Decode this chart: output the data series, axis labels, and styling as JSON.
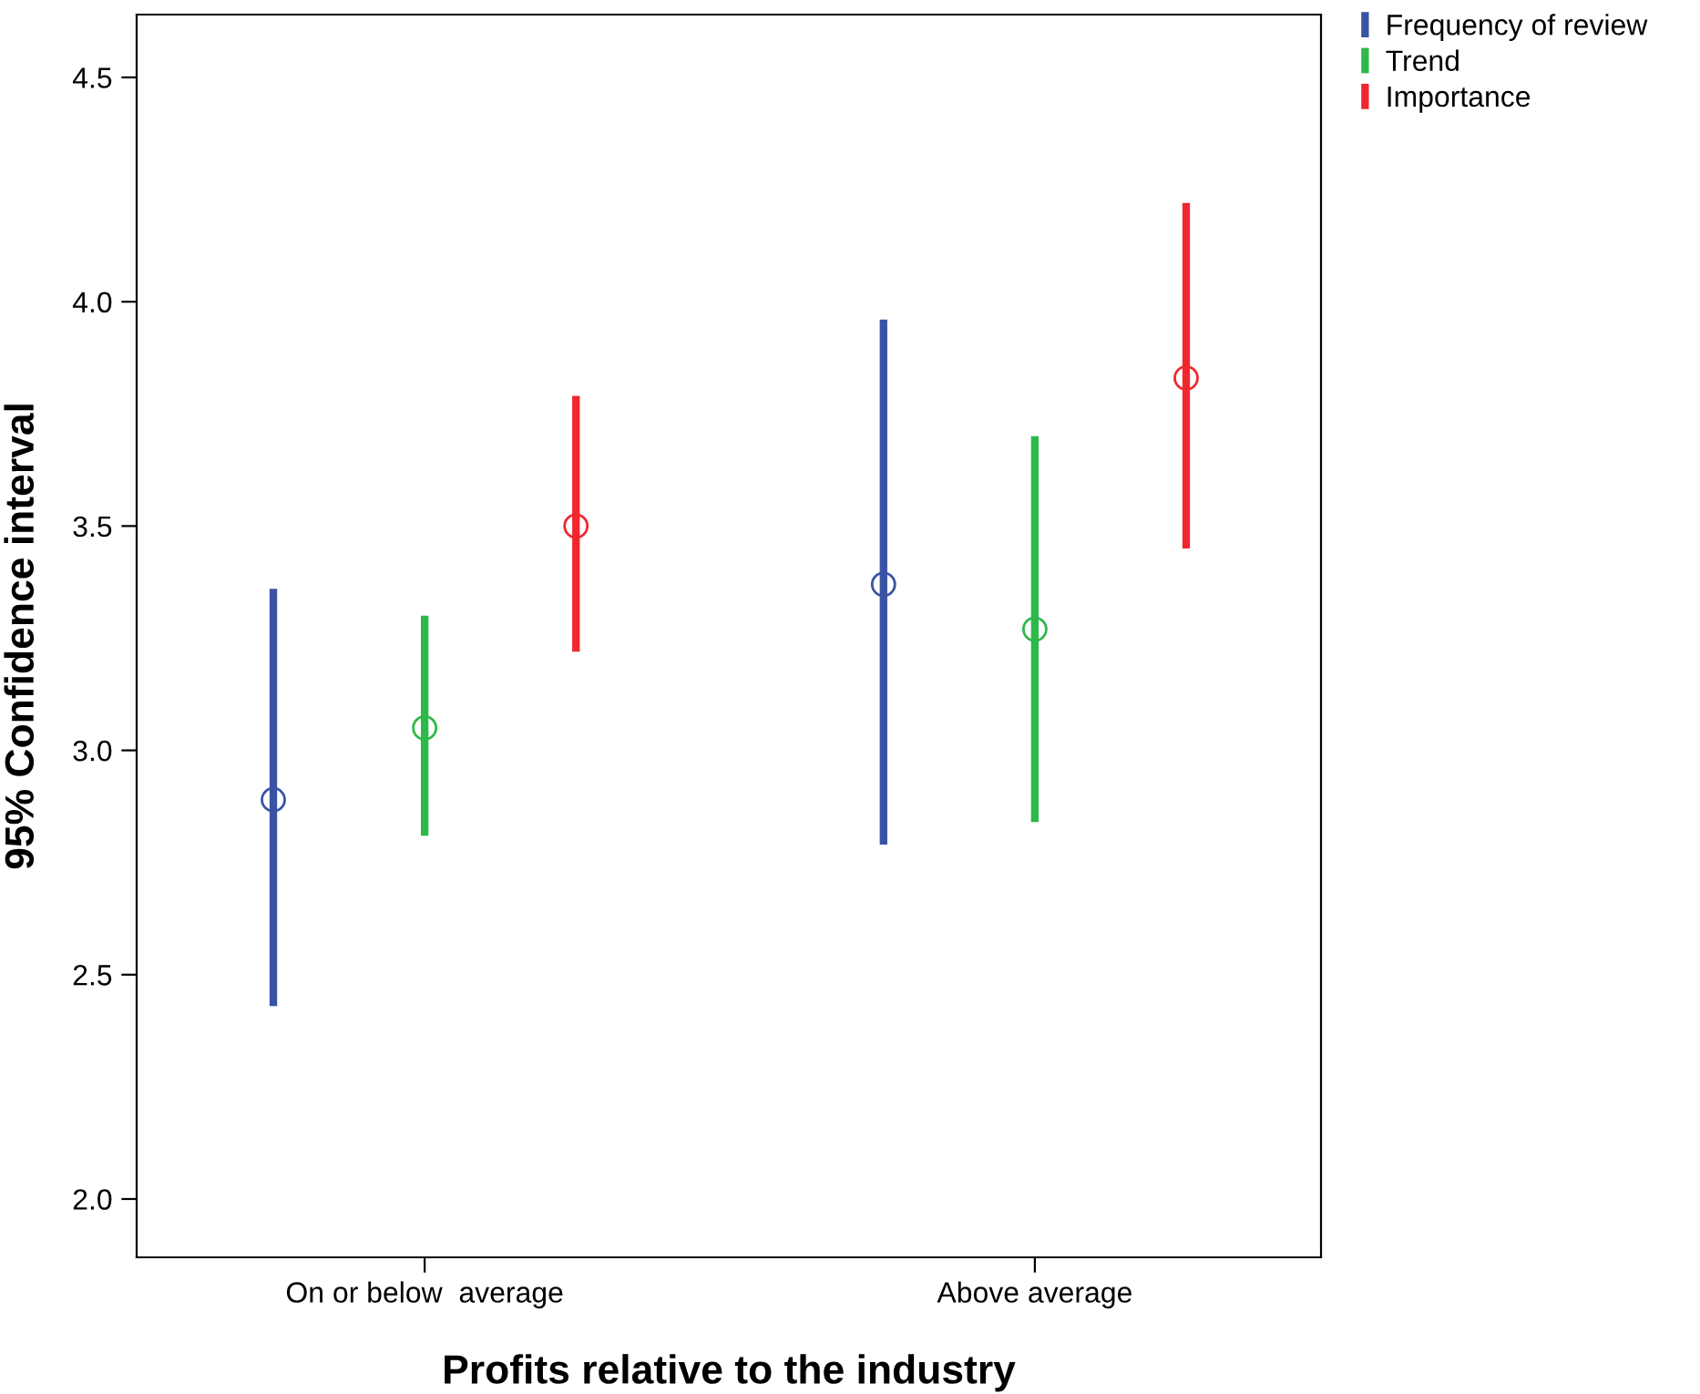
{
  "chart_data": {
    "type": "scatter",
    "xlabel": "Profits relative to the industry",
    "ylabel": "95% Confidence interval",
    "categories": [
      "On or below  average",
      "Above average"
    ],
    "series": [
      {
        "name": "Frequency of review",
        "color": "#3953a4",
        "values": [
          2.89,
          3.37
        ],
        "errors": [
          [
            2.43,
            3.36
          ],
          [
            2.79,
            3.96
          ]
        ]
      },
      {
        "name": "Trend",
        "color": "#2db84a",
        "values": [
          3.05,
          3.27
        ],
        "errors": [
          [
            2.81,
            3.3
          ],
          [
            2.84,
            3.7
          ]
        ]
      },
      {
        "name": "Importance",
        "color": "#f0282e",
        "values": [
          3.5,
          3.83
        ],
        "errors": [
          [
            3.22,
            3.79
          ],
          [
            3.45,
            4.22
          ]
        ]
      }
    ],
    "ylim": [
      1.87,
      4.64
    ],
    "yticks": [
      {
        "value": 2,
        "label": "2.0"
      },
      2.5,
      {
        "value": 3,
        "label": "3.0"
      },
      3.5,
      {
        "value": 4,
        "label": "4.0"
      },
      4.5
    ],
    "marker": "circle",
    "legend": "top right",
    "grid": false
  }
}
